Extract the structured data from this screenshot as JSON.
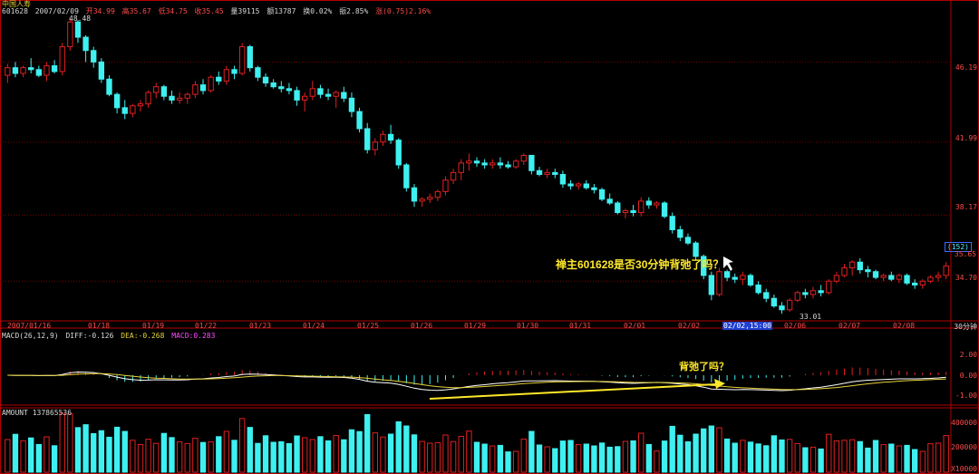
{
  "header": {
    "stock_name": "中国人寿",
    "stock_code": "601628",
    "date": "2007/02/09",
    "open": "开34.99",
    "high": "高35.67",
    "low": "低34.75",
    "close": "收35.45",
    "volume": "量39115",
    "amount": "额13787",
    "turnover": "换0.02%",
    "amplitude": "振2.85%",
    "change": "涨(0.75)2.16%"
  },
  "price_axis": [
    "46.19",
    "41.99",
    "38.17",
    "34.70"
  ],
  "price_badge": {
    "count": "(152)",
    "price": "35.65"
  },
  "high_label": "48.48",
  "low_label": "33.01",
  "date_axis": [
    "2007/01/16",
    "01/18",
    "01/19",
    "01/22",
    "01/23",
    "01/24",
    "01/25",
    "01/26",
    "01/29",
    "01/30",
    "01/31",
    "02/01",
    "02/02",
    "02/02,15:00",
    "02/06",
    "02/07",
    "02/08"
  ],
  "period_label": "30分钟",
  "macd": {
    "label": "MACD(26,12,9)",
    "diff": "DIFF:-0.126",
    "dea": "DEA:-0.268",
    "macd_val": "MACD:0.283",
    "axis": [
      "2.00",
      "0.00",
      "-1.00"
    ]
  },
  "amount_panel": {
    "label": "AMOUNT 137865536",
    "axis": [
      "400000",
      "200000",
      "X10000"
    ]
  },
  "annotations": {
    "main": "禅主601628是否30分钟背弛了吗？",
    "macd": "背弛了吗？"
  },
  "colors": {
    "up": "#e02020",
    "down": "#3ff0f0",
    "grid": "#7a0000",
    "diff": "#ffffff",
    "dea": "#e8d23a",
    "arrow": "#ffe82a"
  },
  "chart_data": {
    "type": "candlestick",
    "title": "中国人寿 601628",
    "x_labels": [
      "2007/01/16",
      "01/18",
      "01/19",
      "01/22",
      "01/23",
      "01/24",
      "01/25",
      "01/26",
      "01/29",
      "01/30",
      "01/31",
      "02/01",
      "02/02",
      "02/06",
      "02/07",
      "02/08"
    ],
    "ylim": [
      33.0,
      48.5
    ],
    "series": [
      {
        "ohlc": [
          [
            45.5,
            46.1,
            45.1,
            45.9
          ],
          [
            45.9,
            46.2,
            45.4,
            45.6
          ],
          [
            45.6,
            46.0,
            45.4,
            45.9
          ],
          [
            45.9,
            46.4,
            45.6,
            45.8
          ],
          [
            45.8,
            46.0,
            45.4,
            45.5
          ],
          [
            45.5,
            46.2,
            45.2,
            46.0
          ],
          [
            46.0,
            46.3,
            45.6,
            45.7
          ],
          [
            45.7,
            47.2,
            45.5,
            47.0
          ],
          [
            47.0,
            48.5,
            46.8,
            48.3
          ],
          [
            48.3,
            48.4,
            47.2,
            47.5
          ],
          [
            47.5,
            47.6,
            46.2,
            46.8
          ],
          [
            46.8,
            47.0,
            45.9,
            46.2
          ],
          [
            46.2,
            46.4,
            45.1,
            45.3
          ],
          [
            45.3,
            45.5,
            44.4,
            44.5
          ],
          [
            44.5,
            44.6,
            43.5,
            43.8
          ],
          [
            43.8,
            44.2,
            43.2,
            43.5
          ],
          [
            43.5,
            44.0,
            43.3,
            43.9
          ],
          [
            43.9,
            44.2,
            43.6,
            44.0
          ],
          [
            44.0,
            44.7,
            43.8,
            44.6
          ],
          [
            44.6,
            45.1,
            44.3,
            44.9
          ],
          [
            44.9,
            45.0,
            44.2,
            44.4
          ],
          [
            44.4,
            44.7,
            44.0,
            44.2
          ],
          [
            44.2,
            44.6,
            44.0,
            44.3
          ],
          [
            44.3,
            44.6,
            44.0,
            44.5
          ],
          [
            44.5,
            45.2,
            44.3,
            45.0
          ],
          [
            45.0,
            45.3,
            44.5,
            44.7
          ],
          [
            44.7,
            45.5,
            44.6,
            45.4
          ],
          [
            45.4,
            45.7,
            45.0,
            45.2
          ],
          [
            45.2,
            46.0,
            45.0,
            45.8
          ],
          [
            45.8,
            46.0,
            45.3,
            45.6
          ],
          [
            45.6,
            47.2,
            45.5,
            47.0
          ],
          [
            47.0,
            47.1,
            45.7,
            45.9
          ],
          [
            45.9,
            46.0,
            45.2,
            45.4
          ],
          [
            45.4,
            45.6,
            44.9,
            45.1
          ],
          [
            45.1,
            45.3,
            44.8,
            44.9
          ],
          [
            44.9,
            45.2,
            44.6,
            44.8
          ],
          [
            44.8,
            45.1,
            44.5,
            44.7
          ],
          [
            44.7,
            44.9,
            43.9,
            44.2
          ],
          [
            44.2,
            44.6,
            43.6,
            44.4
          ],
          [
            44.4,
            45.2,
            44.2,
            44.8
          ],
          [
            44.8,
            45.0,
            44.3,
            44.5
          ],
          [
            44.5,
            44.8,
            44.2,
            44.4
          ],
          [
            44.4,
            44.7,
            43.8,
            44.6
          ],
          [
            44.6,
            44.9,
            44.1,
            44.3
          ],
          [
            44.3,
            44.6,
            43.3,
            43.6
          ],
          [
            43.6,
            43.8,
            42.5,
            42.7
          ],
          [
            42.7,
            43.0,
            41.4,
            41.6
          ],
          [
            41.6,
            42.2,
            41.3,
            42.0
          ],
          [
            42.0,
            42.6,
            41.8,
            42.4
          ],
          [
            42.4,
            42.9,
            41.9,
            42.1
          ],
          [
            42.1,
            42.2,
            40.6,
            40.8
          ],
          [
            40.8,
            40.9,
            39.4,
            39.6
          ],
          [
            39.6,
            39.8,
            38.6,
            38.9
          ],
          [
            38.9,
            39.1,
            38.6,
            39.0
          ],
          [
            39.0,
            39.3,
            38.8,
            39.1
          ],
          [
            39.1,
            39.5,
            38.9,
            39.4
          ],
          [
            39.4,
            40.2,
            39.2,
            40.0
          ],
          [
            40.0,
            40.6,
            39.8,
            40.4
          ],
          [
            40.4,
            41.1,
            40.0,
            40.9
          ],
          [
            40.9,
            41.4,
            40.5,
            41.0
          ],
          [
            41.0,
            41.2,
            40.7,
            40.9
          ],
          [
            40.9,
            41.1,
            40.6,
            40.8
          ],
          [
            40.8,
            41.1,
            40.6,
            40.9
          ],
          [
            40.9,
            41.2,
            40.6,
            40.8
          ],
          [
            40.8,
            41.0,
            40.6,
            40.7
          ],
          [
            40.7,
            41.1,
            40.6,
            41.0
          ],
          [
            41.0,
            41.4,
            40.8,
            41.3
          ],
          [
            41.3,
            41.3,
            40.3,
            40.5
          ],
          [
            40.5,
            40.7,
            40.2,
            40.3
          ],
          [
            40.3,
            40.6,
            40.1,
            40.4
          ],
          [
            40.4,
            40.6,
            40.1,
            40.3
          ],
          [
            40.3,
            40.5,
            39.6,
            39.8
          ],
          [
            39.8,
            40.0,
            39.5,
            39.7
          ],
          [
            39.7,
            39.9,
            39.5,
            39.8
          ],
          [
            39.8,
            40.0,
            39.5,
            39.6
          ],
          [
            39.6,
            39.8,
            39.3,
            39.5
          ],
          [
            39.5,
            39.6,
            38.9,
            39.0
          ],
          [
            39.0,
            39.3,
            38.7,
            38.8
          ],
          [
            38.8,
            38.9,
            38.2,
            38.3
          ],
          [
            38.3,
            38.5,
            38.0,
            38.4
          ],
          [
            38.4,
            38.7,
            38.1,
            38.3
          ],
          [
            38.3,
            39.1,
            38.1,
            38.9
          ],
          [
            38.9,
            39.1,
            38.5,
            38.7
          ],
          [
            38.7,
            38.9,
            38.5,
            38.8
          ],
          [
            38.8,
            38.9,
            38.0,
            38.1
          ],
          [
            38.1,
            38.3,
            37.2,
            37.4
          ],
          [
            37.4,
            37.6,
            36.8,
            37.0
          ],
          [
            37.0,
            37.2,
            36.6,
            36.7
          ],
          [
            36.7,
            36.8,
            35.8,
            36.0
          ],
          [
            36.0,
            36.1,
            34.8,
            35.0
          ],
          [
            35.0,
            35.2,
            33.7,
            34.0
          ],
          [
            34.0,
            35.4,
            33.9,
            35.2
          ],
          [
            35.2,
            35.3,
            34.7,
            34.9
          ],
          [
            34.9,
            35.1,
            34.6,
            34.8
          ],
          [
            34.8,
            35.2,
            34.5,
            35.0
          ],
          [
            35.0,
            35.1,
            34.4,
            34.5
          ],
          [
            34.5,
            34.7,
            34.0,
            34.1
          ],
          [
            34.1,
            34.3,
            33.6,
            33.8
          ],
          [
            33.8,
            34.0,
            33.3,
            33.4
          ],
          [
            33.4,
            33.6,
            33.0,
            33.2
          ],
          [
            33.2,
            33.8,
            33.1,
            33.7
          ],
          [
            33.7,
            34.2,
            33.6,
            34.1
          ],
          [
            34.1,
            34.3,
            33.8,
            34.0
          ],
          [
            34.0,
            34.4,
            33.8,
            34.2
          ],
          [
            34.2,
            34.5,
            33.9,
            34.1
          ],
          [
            34.1,
            34.8,
            34.0,
            34.7
          ],
          [
            34.7,
            35.2,
            34.6,
            35.0
          ],
          [
            35.0,
            35.6,
            34.9,
            35.4
          ],
          [
            35.4,
            35.8,
            35.0,
            35.7
          ],
          [
            35.7,
            35.9,
            35.1,
            35.3
          ],
          [
            35.3,
            35.5,
            34.9,
            35.2
          ],
          [
            35.2,
            35.3,
            34.8,
            34.9
          ],
          [
            34.9,
            35.1,
            34.7,
            35.0
          ],
          [
            35.0,
            35.2,
            34.7,
            34.8
          ],
          [
            34.8,
            35.1,
            34.6,
            35.0
          ],
          [
            35.0,
            35.1,
            34.5,
            34.6
          ],
          [
            34.6,
            34.8,
            34.3,
            34.5
          ],
          [
            34.5,
            34.8,
            34.3,
            34.7
          ],
          [
            34.7,
            35.0,
            34.6,
            34.9
          ],
          [
            34.9,
            35.2,
            34.7,
            35.0
          ],
          [
            35.0,
            35.7,
            34.8,
            35.5
          ]
        ]
      }
    ]
  }
}
